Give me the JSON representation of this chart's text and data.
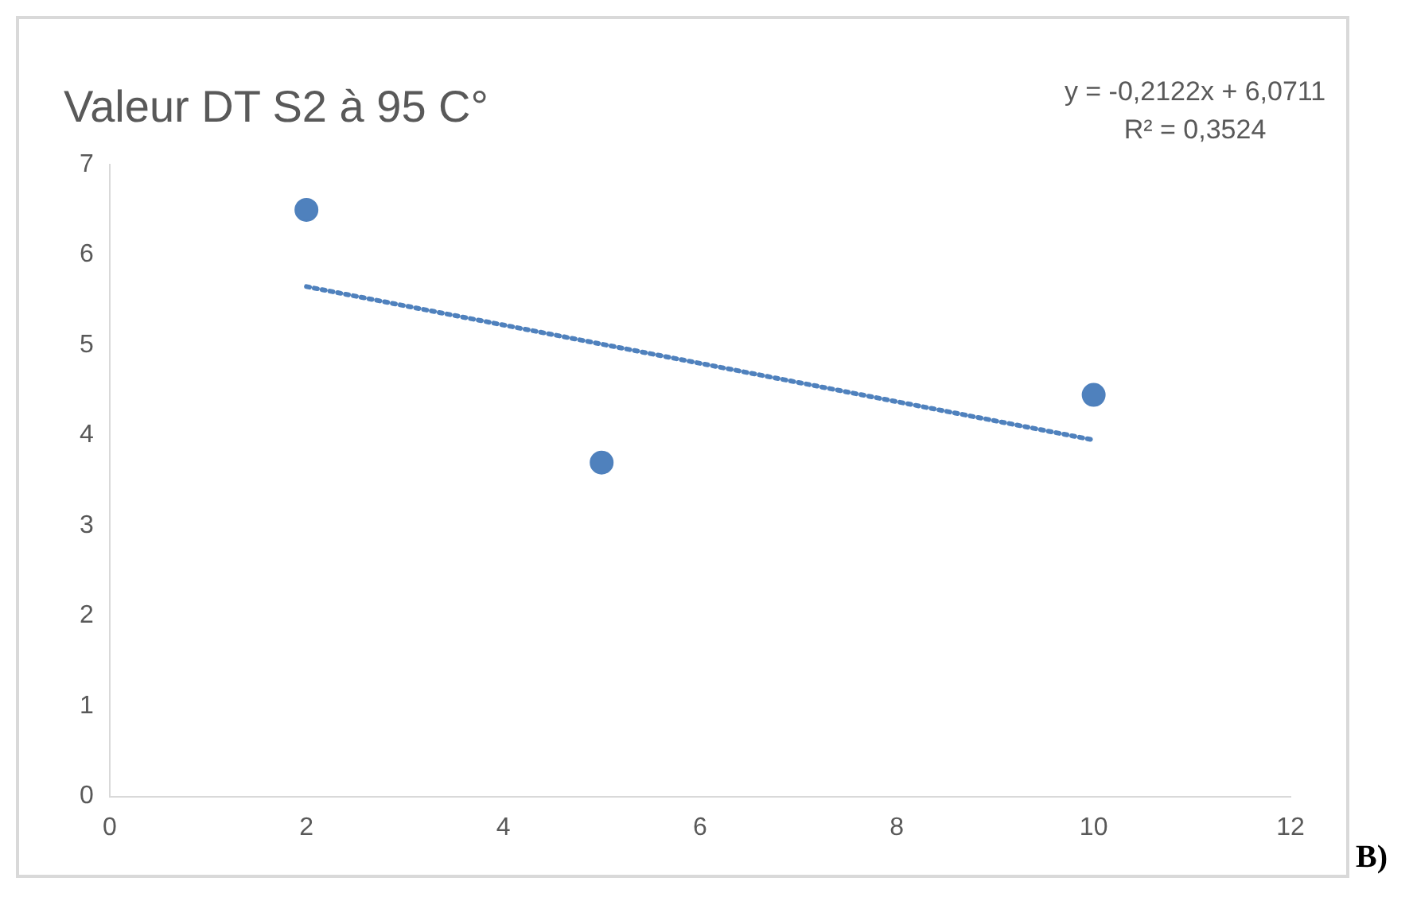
{
  "chart_data": {
    "type": "scatter",
    "title": "Valeur DT S2 à 95 C°",
    "series": [
      {
        "type": "scatter",
        "color": "#4f81bd",
        "x": [
          2,
          5,
          10
        ],
        "values": [
          6.5,
          3.7,
          4.45
        ],
        "marker": "circle"
      },
      {
        "type": "line",
        "color": "#4f81bd",
        "x": [
          2,
          10
        ],
        "values": [
          5.65,
          3.95
        ],
        "marker": "none",
        "line_style": "dotted"
      }
    ],
    "xlim": [
      0,
      12
    ],
    "xticks": [
      0,
      2,
      4,
      6,
      8,
      10,
      12
    ],
    "ylim": [
      0,
      7
    ],
    "yticks": [
      0,
      1,
      2,
      3,
      4,
      5,
      6,
      7
    ],
    "grid": false,
    "legend": false,
    "annotations": [
      "y = -0,2122x + 6,0711",
      "R² = 0,3524",
      "B)"
    ]
  }
}
